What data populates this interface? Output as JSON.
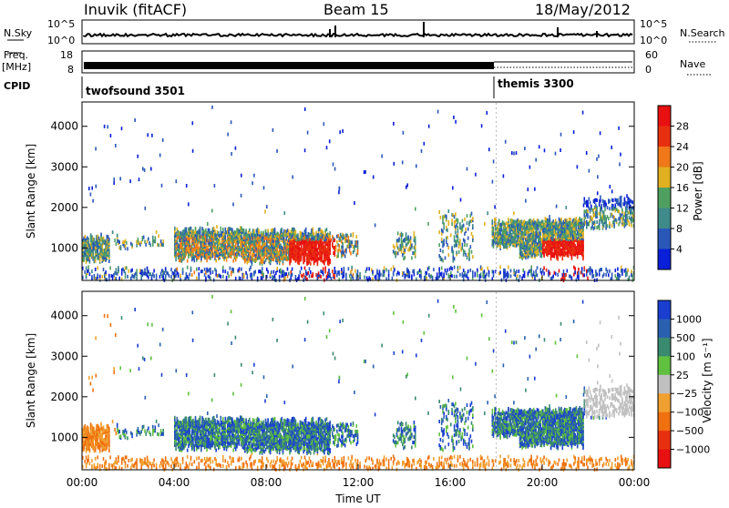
{
  "header": {
    "station": "Inuvik (fitACF)",
    "beam": "Beam 15",
    "date": "18/May/2012"
  },
  "top_panels": {
    "nsky_label": "N.Sky",
    "nsky_ticks": [
      "10^5",
      "10^0"
    ],
    "nsearch_label": "N.Search",
    "freq_label_1": "Freq.",
    "freq_label_2": "[MHz]",
    "freq_ticks": [
      "18",
      "8"
    ],
    "nave_label": "Nave",
    "nave_ticks": [
      "60",
      "0"
    ],
    "cpid_label": "CPID",
    "cpid_1": "twofsound 3501",
    "cpid_2": "themis 3300"
  },
  "chart_data": [
    {
      "type": "heatmap",
      "name": "power",
      "ylabel": "Slant Range [km]",
      "yticks": [
        1000,
        2000,
        3000,
        4000
      ],
      "ylim": [
        200,
        4600
      ],
      "colorbar_label": "Power [dB]",
      "colorbar_ticks": [
        4,
        8,
        12,
        16,
        20,
        24,
        28
      ],
      "colors": [
        "#0a1fd8",
        "#2a58b8",
        "#3f8a8a",
        "#4fa060",
        "#e0b020",
        "#f07818",
        "#e83010",
        "#e81010"
      ]
    },
    {
      "type": "heatmap",
      "name": "velocity",
      "ylabel": "Slant Range [km]",
      "yticks": [
        1000,
        2000,
        3000,
        4000
      ],
      "ylim": [
        200,
        4600
      ],
      "xlabel": "Time UT",
      "xticks": [
        "00:00",
        "04:00",
        "08:00",
        "12:00",
        "16:00",
        "20:00",
        "00:00"
      ],
      "colorbar_label": "Velocity [m s⁻¹]",
      "colorbar_ticks": [
        "1000",
        "500",
        "100",
        "25",
        "−25",
        "−100",
        "−500",
        "−1000"
      ],
      "colors": [
        "#1a3fd0",
        "#2a60b0",
        "#3a8a70",
        "#60c040",
        "#c0c0c0",
        "#f0a030",
        "#f07010",
        "#e83010",
        "#e81010"
      ]
    }
  ]
}
